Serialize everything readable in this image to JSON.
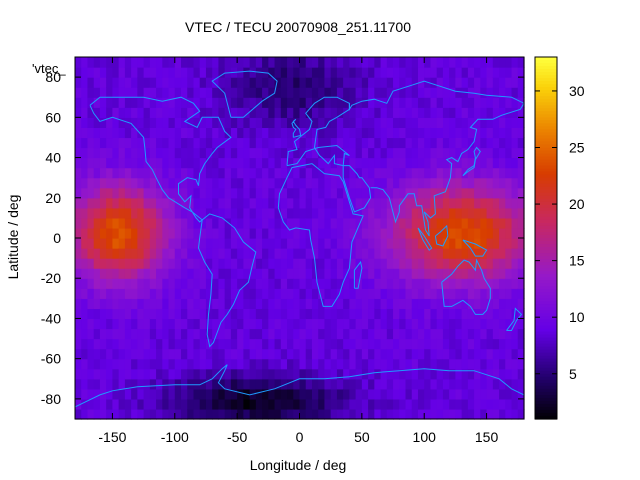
{
  "chart_data": {
    "type": "heatmap",
    "title": "VTEC / TECU 20070908_251.11700",
    "xlabel": "Longitude / deg",
    "ylabel": "Latitude / deg",
    "key_label": "'vtec_",
    "xlim": [
      -180,
      180
    ],
    "ylim": [
      -90,
      90
    ],
    "xticks": [
      -150,
      -100,
      -50,
      0,
      50,
      100,
      150
    ],
    "yticks": [
      -80,
      -60,
      -40,
      -20,
      0,
      20,
      40,
      60,
      80
    ],
    "xtick_labels": [
      "-150",
      "-100",
      "-50",
      "0",
      "50",
      "100",
      "150"
    ],
    "ytick_labels": [
      "-80",
      "-60",
      "-40",
      "-20",
      "0",
      "20",
      "40",
      "60",
      "80"
    ],
    "colorbar": {
      "range": [
        1,
        33
      ],
      "ticks": [
        5,
        10,
        15,
        20,
        25,
        30
      ],
      "tick_labels": [
        "5",
        "10",
        "15",
        "20",
        "25",
        "30"
      ],
      "palette": "black-blue-purple-red-orange-yellow"
    },
    "grid": false,
    "background_vtec": 9,
    "features": [
      {
        "name": "pacific-equatorial-anomaly",
        "lon": [
          -180,
          -110
        ],
        "lat": [
          -20,
          25
        ],
        "peak_vtec": 24
      },
      {
        "name": "indian-ocean-anomaly",
        "lon": [
          80,
          180
        ],
        "lat": [
          -20,
          25
        ],
        "peak_vtec": 24
      },
      {
        "name": "antarctic-minimum",
        "lon": [
          -90,
          20
        ],
        "lat": [
          -90,
          -72
        ],
        "min_vtec": 2
      },
      {
        "name": "arctic-minimum",
        "lon": [
          -50,
          40
        ],
        "lat": [
          60,
          90
        ],
        "min_vtec": 5
      }
    ],
    "coastline_color": "#00a0ff"
  }
}
